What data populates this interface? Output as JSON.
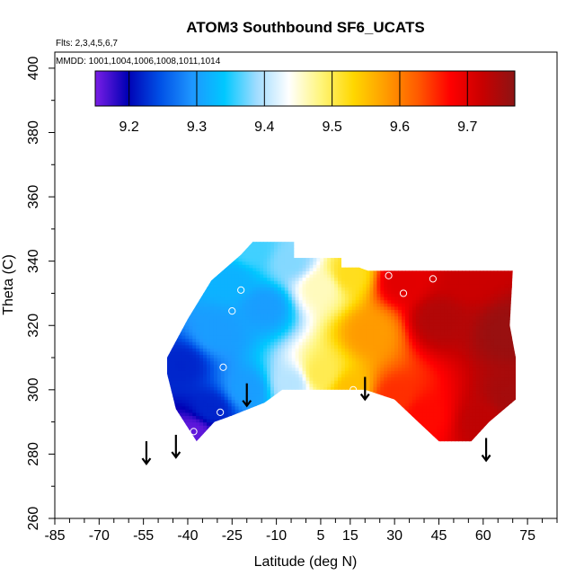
{
  "chart_data": {
    "type": "heatmap",
    "title": "ATOM3 Southbound SF6_UCATS",
    "annotations": [
      "Flts: 2,3,4,5,6,7",
      "MMDD: 1001,1004,1006,1008,1011,1014"
    ],
    "xlabel": "Latitude (deg N)",
    "ylabel": "Theta (C)",
    "xlim": [
      -85,
      85
    ],
    "ylim": [
      260,
      405
    ],
    "x_ticks": [
      -85,
      -70,
      -55,
      -40,
      -25,
      -10,
      5,
      15,
      30,
      45,
      60,
      75
    ],
    "y_ticks": [
      260,
      280,
      300,
      320,
      340,
      360,
      380,
      400
    ],
    "colorbar": {
      "range": [
        9.15,
        9.77
      ],
      "ticks": [
        9.2,
        9.3,
        9.4,
        9.5,
        9.6,
        9.7
      ],
      "tick_labels": [
        "9.2",
        "9.3",
        "9.4",
        "9.5",
        "9.6",
        "9.7"
      ],
      "colors": [
        "#7a1ee6",
        "#0000b4",
        "#0050e6",
        "#1e96ff",
        "#00c8ff",
        "#a0dcff",
        "#ffffff",
        "#fff57a",
        "#ffd700",
        "#ff9c00",
        "#ff5a00",
        "#ff0000",
        "#c80000",
        "#8c1414"
      ]
    },
    "field_nodes": [
      {
        "lat": -38,
        "theta": 287,
        "value": 9.16
      },
      {
        "lat": -42,
        "theta": 308,
        "value": 9.22
      },
      {
        "lat": -32,
        "theta": 294,
        "value": 9.22
      },
      {
        "lat": -30,
        "theta": 318,
        "value": 9.3
      },
      {
        "lat": -25,
        "theta": 334,
        "value": 9.32
      },
      {
        "lat": -20,
        "theta": 300,
        "value": 9.3
      },
      {
        "lat": -18,
        "theta": 344,
        "value": 9.36
      },
      {
        "lat": -14,
        "theta": 326,
        "value": 9.3
      },
      {
        "lat": -5,
        "theta": 302,
        "value": 9.4
      },
      {
        "lat": -5,
        "theta": 340,
        "value": 9.38
      },
      {
        "lat": 5,
        "theta": 305,
        "value": 9.5
      },
      {
        "lat": 5,
        "theta": 332,
        "value": 9.46
      },
      {
        "lat": 15,
        "theta": 300,
        "value": 9.55
      },
      {
        "lat": 15,
        "theta": 336,
        "value": 9.52
      },
      {
        "lat": 22,
        "theta": 318,
        "value": 9.58
      },
      {
        "lat": 30,
        "theta": 298,
        "value": 9.65
      },
      {
        "lat": 32,
        "theta": 334,
        "value": 9.7
      },
      {
        "lat": 40,
        "theta": 292,
        "value": 9.67
      },
      {
        "lat": 45,
        "theta": 322,
        "value": 9.74
      },
      {
        "lat": 55,
        "theta": 335,
        "value": 9.72
      },
      {
        "lat": 60,
        "theta": 290,
        "value": 9.73
      },
      {
        "lat": 68,
        "theta": 318,
        "value": 9.76
      },
      {
        "lat": 70,
        "theta": 298,
        "value": 9.75
      }
    ],
    "data_boundary": [
      [
        -37,
        284
      ],
      [
        -44,
        294
      ],
      [
        -47,
        305
      ],
      [
        -47,
        310
      ],
      [
        -40,
        322
      ],
      [
        -32,
        334
      ],
      [
        -22,
        342
      ],
      [
        -18,
        346
      ],
      [
        -4,
        346
      ],
      [
        -4,
        341
      ],
      [
        12,
        341
      ],
      [
        12,
        338
      ],
      [
        18,
        338
      ],
      [
        21,
        337
      ],
      [
        70,
        337
      ],
      [
        69,
        320
      ],
      [
        71,
        310
      ],
      [
        71,
        297
      ],
      [
        62,
        290
      ],
      [
        56,
        284
      ],
      [
        45,
        284
      ],
      [
        38,
        290
      ],
      [
        30,
        297
      ],
      [
        20,
        300
      ],
      [
        5,
        300
      ],
      [
        -8,
        300
      ],
      [
        -14,
        296
      ],
      [
        -25,
        292
      ],
      [
        -31,
        290
      ]
    ],
    "sample_points": [
      {
        "lat": -38,
        "theta": 287
      },
      {
        "lat": -29,
        "theta": 293
      },
      {
        "lat": -28,
        "theta": 307
      },
      {
        "lat": -25,
        "theta": 324.5
      },
      {
        "lat": -22,
        "theta": 331
      },
      {
        "lat": 16,
        "theta": 300
      },
      {
        "lat": 28,
        "theta": 335.5
      },
      {
        "lat": 33,
        "theta": 330
      },
      {
        "lat": 43,
        "theta": 334.5
      }
    ],
    "arrows": [
      {
        "lat": -54,
        "theta_top": 284,
        "theta_bottom": 277
      },
      {
        "lat": -44,
        "theta_top": 286,
        "theta_bottom": 279
      },
      {
        "lat": -20,
        "theta_top": 302,
        "theta_bottom": 295
      },
      {
        "lat": 20,
        "theta_top": 304,
        "theta_bottom": 297
      },
      {
        "lat": 61,
        "theta_top": 285,
        "theta_bottom": 278
      }
    ]
  }
}
